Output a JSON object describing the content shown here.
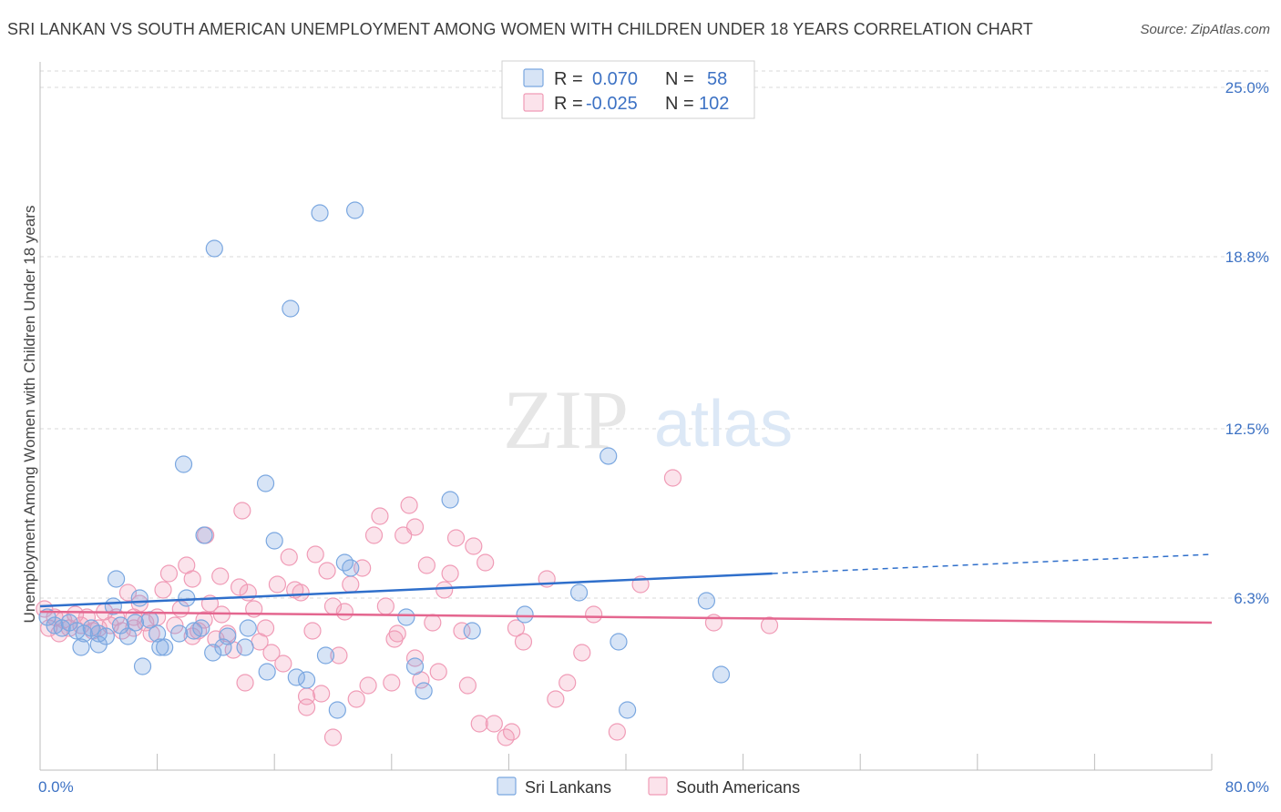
{
  "title": "SRI LANKAN VS SOUTH AMERICAN UNEMPLOYMENT AMONG WOMEN WITH CHILDREN UNDER 18 YEARS CORRELATION CHART",
  "source": "Source: ZipAtlas.com",
  "watermark": {
    "zip": "ZIP",
    "atlas": "atlas"
  },
  "colors": {
    "blue": "#7aa7e0",
    "blue_fill": "rgba(122,167,224,0.30)",
    "blue_line": "#2f6fcb",
    "pink": "#f09bb6",
    "pink_fill": "rgba(240,155,182,0.28)",
    "pink_line": "#e4668f",
    "tick_text": "#3d72c4",
    "grid": "#d9d9d9"
  },
  "legend": {
    "rows": [
      {
        "r_label": "R =",
        "r_value": "0.070",
        "n_label": "N =",
        "n_value": "58",
        "series": "blue"
      },
      {
        "r_label": "R =",
        "r_value": "-0.025",
        "n_label": "N =",
        "n_value": "102",
        "series": "pink"
      }
    ]
  },
  "bottom_legend": [
    {
      "label": "Sri Lankans",
      "series": "blue"
    },
    {
      "label": "South Americans",
      "series": "pink"
    }
  ],
  "chart_data": {
    "type": "scatter",
    "title": "SRI LANKAN VS SOUTH AMERICAN UNEMPLOYMENT AMONG WOMEN WITH CHILDREN UNDER 18 YEARS CORRELATION CHART",
    "xlabel": "",
    "ylabel": "Unemployment Among Women with Children Under 18 years",
    "xlim": [
      0,
      80
    ],
    "ylim": [
      0,
      25.6
    ],
    "x_tick_labels": [
      {
        "value": 0,
        "label": "0.0%"
      },
      {
        "value": 80,
        "label": "80.0%"
      }
    ],
    "y_tick_labels": [
      {
        "value": 6.3,
        "label": "6.3%"
      },
      {
        "value": 12.5,
        "label": "12.5%"
      },
      {
        "value": 18.8,
        "label": "18.8%"
      },
      {
        "value": 25.0,
        "label": "25.0%"
      }
    ],
    "series": [
      {
        "name": "Sri Lankans",
        "color": "blue",
        "trend": {
          "x0": 0,
          "y0": 6.0,
          "x1": 50,
          "y1": 7.2,
          "x_dash_end": 80,
          "y_dash_end": 7.9
        },
        "points": [
          [
            0.5,
            5.6
          ],
          [
            1,
            5.3
          ],
          [
            1.5,
            5.2
          ],
          [
            2,
            5.4
          ],
          [
            2.5,
            5.1
          ],
          [
            3,
            5.0
          ],
          [
            2.8,
            4.5
          ],
          [
            3.5,
            5.2
          ],
          [
            4,
            5.0
          ],
          [
            4.5,
            4.9
          ],
          [
            4,
            4.6
          ],
          [
            5,
            6.0
          ],
          [
            5.2,
            7.0
          ],
          [
            5.5,
            5.3
          ],
          [
            6,
            4.9
          ],
          [
            6.5,
            5.4
          ],
          [
            6.8,
            6.3
          ],
          [
            7.5,
            5.5
          ],
          [
            7,
            3.8
          ],
          [
            8,
            5.0
          ],
          [
            8.5,
            4.5
          ],
          [
            8.2,
            4.5
          ],
          [
            9.5,
            5.0
          ],
          [
            9.8,
            11.2
          ],
          [
            10,
            6.3
          ],
          [
            10.5,
            5.1
          ],
          [
            11,
            5.2
          ],
          [
            11.2,
            8.6
          ],
          [
            11.8,
            4.3
          ],
          [
            11.9,
            19.1
          ],
          [
            12.5,
            4.5
          ],
          [
            12.8,
            4.9
          ],
          [
            14,
            4.5
          ],
          [
            14.2,
            5.2
          ],
          [
            15.4,
            10.5
          ],
          [
            15.5,
            3.6
          ],
          [
            16,
            8.4
          ],
          [
            17.1,
            16.9
          ],
          [
            17.5,
            3.4
          ],
          [
            18.2,
            3.3
          ],
          [
            19.1,
            20.4
          ],
          [
            19.5,
            4.2
          ],
          [
            20.3,
            2.2
          ],
          [
            20.8,
            7.6
          ],
          [
            21.5,
            20.5
          ],
          [
            21.2,
            7.4
          ],
          [
            25,
            5.6
          ],
          [
            25.6,
            3.8
          ],
          [
            26.2,
            2.9
          ],
          [
            28,
            9.9
          ],
          [
            29.5,
            5.1
          ],
          [
            33.1,
            5.7
          ],
          [
            36.8,
            6.5
          ],
          [
            38.8,
            11.5
          ],
          [
            39.5,
            4.7
          ],
          [
            40.1,
            2.2
          ],
          [
            45.5,
            6.2
          ],
          [
            46.5,
            3.5
          ]
        ]
      },
      {
        "name": "South Americans",
        "color": "pink",
        "trend": {
          "x0": 0,
          "y0": 5.8,
          "x1": 80,
          "y1": 5.4
        },
        "points": [
          [
            0.3,
            5.9
          ],
          [
            0.6,
            5.2
          ],
          [
            1,
            5.6
          ],
          [
            1.3,
            5.0
          ],
          [
            1.6,
            5.5
          ],
          [
            2,
            5.2
          ],
          [
            2.4,
            5.7
          ],
          [
            2.8,
            5.3
          ],
          [
            3.2,
            5.6
          ],
          [
            3.6,
            5.1
          ],
          [
            4,
            5.2
          ],
          [
            4.4,
            5.8
          ],
          [
            4.8,
            5.3
          ],
          [
            5.2,
            5.6
          ],
          [
            5.6,
            5.1
          ],
          [
            6,
            6.5
          ],
          [
            6.4,
            5.2
          ],
          [
            6.8,
            6.1
          ],
          [
            7.2,
            5.4
          ],
          [
            7.6,
            5.0
          ],
          [
            8,
            5.6
          ],
          [
            8.4,
            6.6
          ],
          [
            8.8,
            7.2
          ],
          [
            9.2,
            5.3
          ],
          [
            9.6,
            5.9
          ],
          [
            10,
            7.5
          ],
          [
            10.4,
            7.0
          ],
          [
            10.8,
            5.1
          ],
          [
            11.2,
            5.5
          ],
          [
            11.3,
            8.6
          ],
          [
            11.6,
            6.1
          ],
          [
            12,
            4.8
          ],
          [
            12.4,
            5.7
          ],
          [
            12.3,
            7.1
          ],
          [
            12.8,
            5.0
          ],
          [
            13.2,
            4.4
          ],
          [
            13.6,
            6.7
          ],
          [
            13.8,
            9.5
          ],
          [
            14.2,
            6.5
          ],
          [
            14.6,
            5.9
          ],
          [
            15,
            4.7
          ],
          [
            15.4,
            5.2
          ],
          [
            15.8,
            4.3
          ],
          [
            16.2,
            6.8
          ],
          [
            16.6,
            3.9
          ],
          [
            17,
            7.8
          ],
          [
            17.4,
            6.6
          ],
          [
            17.8,
            6.5
          ],
          [
            18.2,
            2.7
          ],
          [
            18.6,
            5.1
          ],
          [
            18.8,
            7.9
          ],
          [
            19.2,
            2.8
          ],
          [
            19.6,
            7.3
          ],
          [
            20,
            6.0
          ],
          [
            20.4,
            4.2
          ],
          [
            20.8,
            5.8
          ],
          [
            21.2,
            6.8
          ],
          [
            21.6,
            2.6
          ],
          [
            22,
            7.4
          ],
          [
            22.4,
            3.1
          ],
          [
            22.8,
            8.6
          ],
          [
            23.2,
            9.3
          ],
          [
            23.6,
            6.0
          ],
          [
            24,
            3.2
          ],
          [
            24.2,
            4.8
          ],
          [
            24.4,
            5.0
          ],
          [
            24.8,
            8.6
          ],
          [
            25.2,
            9.7
          ],
          [
            25.6,
            8.9
          ],
          [
            26,
            3.3
          ],
          [
            26.4,
            7.5
          ],
          [
            26.8,
            5.4
          ],
          [
            27.2,
            3.6
          ],
          [
            27.6,
            6.6
          ],
          [
            28,
            7.2
          ],
          [
            28.4,
            8.5
          ],
          [
            28.8,
            5.1
          ],
          [
            29.2,
            3.1
          ],
          [
            29.6,
            8.2
          ],
          [
            30,
            1.7
          ],
          [
            30.4,
            7.6
          ],
          [
            31,
            1.7
          ],
          [
            31.8,
            1.2
          ],
          [
            32.2,
            1.4
          ],
          [
            32.5,
            5.2
          ],
          [
            33,
            4.7
          ],
          [
            34.6,
            7.0
          ],
          [
            35.2,
            2.6
          ],
          [
            36,
            3.2
          ],
          [
            37,
            4.3
          ],
          [
            37.8,
            5.7
          ],
          [
            39.4,
            1.4
          ],
          [
            41,
            6.8
          ],
          [
            43.2,
            10.7
          ],
          [
            46,
            5.4
          ],
          [
            49.8,
            5.3
          ],
          [
            20,
            1.2
          ],
          [
            18.2,
            2.3
          ],
          [
            14,
            3.2
          ],
          [
            25.6,
            4.1
          ],
          [
            10.4,
            4.9
          ],
          [
            6.4,
            5.6
          ]
        ]
      }
    ]
  }
}
